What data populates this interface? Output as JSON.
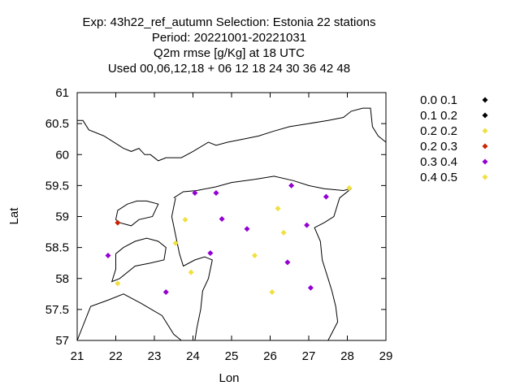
{
  "chart_data": {
    "type": "scatter",
    "title_lines": [
      "Exp: 43h22_ref_autumn   Selection: Estonia     22 stations",
      "Period: 20221001-20221031",
      "Q2m rmse [g/Kg] at  18 UTC",
      "Used  00,06,12,18  + 06 12 18 24 30 36 42 48"
    ],
    "xlabel": "Lon",
    "ylabel": "Lat",
    "xlim": [
      21,
      29
    ],
    "ylim": [
      57,
      61
    ],
    "x_ticks": [
      21,
      22,
      23,
      24,
      25,
      26,
      27,
      28,
      29
    ],
    "y_ticks": [
      57,
      57.5,
      58,
      58.5,
      59,
      59.5,
      60,
      60.5,
      61
    ],
    "x_tick_labels": [
      "21",
      "22",
      "23",
      "24",
      "25",
      "26",
      "27",
      "28",
      "29"
    ],
    "y_tick_labels": [
      "57",
      "57.5",
      "58",
      "58.5",
      "59",
      "59.5",
      "60",
      "60.5",
      "61"
    ],
    "legend_position": "outside-right",
    "grid": false,
    "series": [
      {
        "name": "0.0 0.1",
        "color": "#000000",
        "points": []
      },
      {
        "name": "0.1 0.2",
        "color": "#000000",
        "points": []
      },
      {
        "name": "0.2 0.2",
        "color": "#f0e040",
        "points": [
          [
            28.05,
            59.46
          ],
          [
            26.2,
            59.13
          ],
          [
            23.8,
            58.95
          ],
          [
            26.35,
            58.74
          ],
          [
            23.55,
            58.57
          ],
          [
            25.6,
            58.37
          ],
          [
            23.95,
            58.1
          ],
          [
            22.05,
            57.92
          ],
          [
            26.05,
            57.78
          ]
        ]
      },
      {
        "name": "0.2 0.3",
        "color": "#cc2200",
        "points": [
          [
            22.05,
            58.9
          ]
        ]
      },
      {
        "name": "0.3 0.4",
        "color": "#9400d3",
        "points": [
          [
            24.05,
            59.38
          ],
          [
            24.6,
            59.38
          ],
          [
            26.55,
            59.5
          ],
          [
            27.45,
            59.32
          ],
          [
            24.75,
            58.96
          ],
          [
            25.4,
            58.8
          ],
          [
            26.95,
            58.86
          ],
          [
            21.8,
            58.37
          ],
          [
            24.45,
            58.41
          ],
          [
            26.45,
            58.26
          ],
          [
            23.3,
            57.78
          ],
          [
            27.05,
            57.85
          ]
        ]
      },
      {
        "name": "0.4 0.5",
        "color": "#f0e040",
        "points": []
      }
    ],
    "coastlines": [
      [
        [
          21.0,
          60.55
        ],
        [
          21.15,
          60.55
        ],
        [
          21.3,
          60.4
        ],
        [
          21.7,
          60.3
        ],
        [
          22.2,
          60.1
        ],
        [
          22.4,
          60.05
        ],
        [
          22.6,
          60.1
        ],
        [
          22.75,
          60.0
        ],
        [
          22.9,
          60.0
        ],
        [
          23.1,
          59.9
        ],
        [
          23.3,
          59.95
        ],
        [
          23.7,
          59.95
        ],
        [
          24.0,
          60.05
        ],
        [
          24.4,
          60.2
        ],
        [
          24.6,
          60.15
        ],
        [
          24.9,
          60.2
        ],
        [
          25.3,
          60.25
        ],
        [
          25.7,
          60.3
        ],
        [
          26.1,
          60.38
        ],
        [
          26.5,
          60.45
        ],
        [
          27.0,
          60.5
        ],
        [
          27.5,
          60.55
        ],
        [
          27.9,
          60.6
        ],
        [
          28.1,
          60.7
        ],
        [
          28.4,
          60.75
        ],
        [
          28.6,
          60.75
        ],
        [
          28.65,
          60.45
        ],
        [
          28.8,
          60.3
        ],
        [
          29.0,
          60.2
        ]
      ],
      [
        [
          22.3,
          59.2
        ],
        [
          22.55,
          59.25
        ],
        [
          22.8,
          59.25
        ],
        [
          23.1,
          59.2
        ],
        [
          22.95,
          59.0
        ],
        [
          22.6,
          58.95
        ],
        [
          22.4,
          58.85
        ],
        [
          22.1,
          58.9
        ],
        [
          22.0,
          58.95
        ],
        [
          22.05,
          59.1
        ],
        [
          22.3,
          59.2
        ]
      ],
      [
        [
          22.0,
          58.4
        ],
        [
          22.2,
          58.5
        ],
        [
          22.5,
          58.6
        ],
        [
          22.8,
          58.65
        ],
        [
          23.1,
          58.6
        ],
        [
          23.3,
          58.5
        ],
        [
          23.25,
          58.3
        ],
        [
          22.9,
          58.25
        ],
        [
          22.5,
          58.2
        ],
        [
          22.1,
          58.0
        ],
        [
          21.9,
          57.95
        ],
        [
          22.0,
          58.15
        ],
        [
          22.0,
          58.4
        ]
      ],
      [
        [
          21.0,
          57.0
        ],
        [
          21.35,
          57.55
        ],
        [
          21.8,
          57.65
        ],
        [
          22.2,
          57.75
        ],
        [
          22.65,
          57.6
        ],
        [
          23.2,
          57.4
        ],
        [
          23.5,
          57.1
        ],
        [
          23.7,
          57.0
        ]
      ],
      [
        [
          23.5,
          59.3
        ],
        [
          23.75,
          59.4
        ],
        [
          24.1,
          59.42
        ],
        [
          24.6,
          59.48
        ],
        [
          25.0,
          59.55
        ],
        [
          25.6,
          59.6
        ],
        [
          26.1,
          59.65
        ],
        [
          26.6,
          59.58
        ],
        [
          27.0,
          59.5
        ],
        [
          27.4,
          59.45
        ],
        [
          27.9,
          59.42
        ],
        [
          28.1,
          59.45
        ]
      ],
      [
        [
          28.1,
          59.45
        ],
        [
          27.8,
          59.3
        ],
        [
          27.65,
          59.0
        ],
        [
          27.4,
          58.9
        ],
        [
          27.15,
          58.82
        ],
        [
          27.3,
          58.6
        ],
        [
          27.35,
          58.3
        ],
        [
          27.5,
          58.0
        ],
        [
          27.6,
          57.8
        ],
        [
          27.7,
          57.55
        ],
        [
          27.75,
          57.3
        ],
        [
          27.5,
          57.0
        ]
      ],
      [
        [
          23.55,
          59.3
        ],
        [
          23.45,
          59.0
        ],
        [
          23.55,
          58.7
        ],
        [
          23.65,
          58.4
        ],
        [
          23.75,
          58.2
        ],
        [
          24.05,
          58.3
        ],
        [
          24.3,
          58.35
        ],
        [
          24.5,
          58.3
        ],
        [
          24.4,
          58.0
        ],
        [
          24.25,
          57.8
        ],
        [
          24.2,
          57.5
        ],
        [
          24.1,
          57.2
        ],
        [
          24.05,
          57.0
        ]
      ]
    ]
  }
}
